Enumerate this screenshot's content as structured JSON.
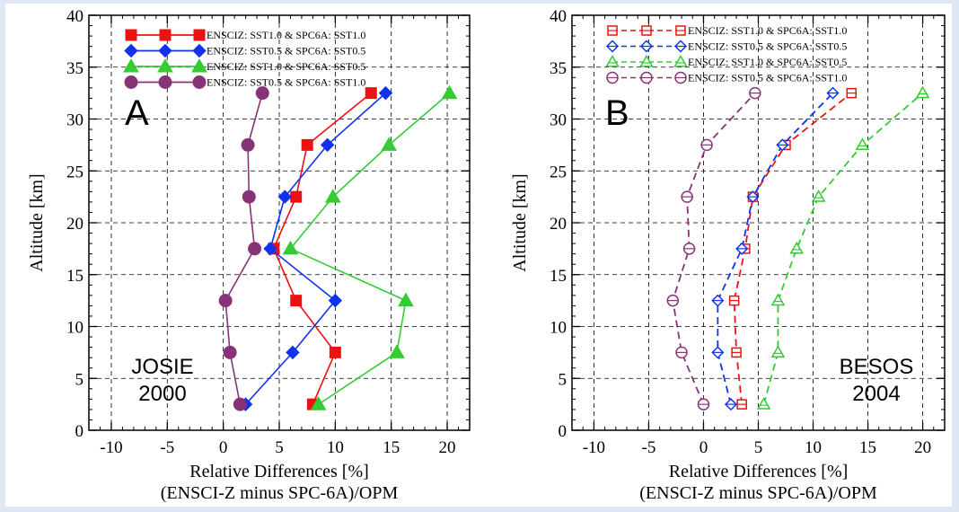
{
  "chart_data": [
    {
      "type": "line",
      "panel_letter": "A",
      "annotation": [
        "JOSIE",
        "2000"
      ],
      "xlabel": "Relative Differences  [%]",
      "xlabel2": "(ENSCI-Z minus SPC-6A)/OPM",
      "ylabel": "Altitude  [km]",
      "xlim": [
        -12,
        22
      ],
      "ylim": [
        0,
        40
      ],
      "x_ticks": [
        -10,
        -5,
        0,
        5,
        10,
        15,
        20
      ],
      "y_ticks": [
        0,
        5,
        10,
        15,
        20,
        25,
        30,
        35,
        40
      ],
      "grid": true,
      "legend_position": "top",
      "line_style": "solid",
      "series": [
        {
          "name": "ENSCIZ: SST1.0 & SPC6A: SST1.0",
          "color": "#ee1111",
          "marker": "square",
          "points": [
            [
              8.0,
              2.5
            ],
            [
              10.0,
              7.5
            ],
            [
              6.5,
              12.5
            ],
            [
              4.5,
              17.5
            ],
            [
              6.5,
              22.5
            ],
            [
              7.5,
              27.5
            ],
            [
              13.2,
              32.5
            ]
          ]
        },
        {
          "name": "ENSCIZ: SST0.5 & SPC6A: SST0.5",
          "color": "#1133ee",
          "marker": "diamond",
          "points": [
            [
              2.0,
              2.5
            ],
            [
              6.2,
              7.5
            ],
            [
              10.0,
              12.5
            ],
            [
              4.2,
              17.5
            ],
            [
              5.5,
              22.5
            ],
            [
              9.3,
              27.5
            ],
            [
              14.5,
              32.5
            ]
          ]
        },
        {
          "name": "ENSCIZ: SST1.0 & SPC6A: SST0.5",
          "color": "#33cc33",
          "marker": "triangle",
          "points": [
            [
              8.5,
              2.5
            ],
            [
              15.5,
              7.5
            ],
            [
              16.3,
              12.5
            ],
            [
              6.0,
              17.5
            ],
            [
              9.8,
              22.5
            ],
            [
              14.8,
              27.5
            ],
            [
              20.2,
              32.5
            ]
          ]
        },
        {
          "name": "ENSCIZ: SST0.5 & SPC6A: SST1.0",
          "color": "#883377",
          "marker": "circle",
          "points": [
            [
              1.5,
              2.5
            ],
            [
              0.6,
              7.5
            ],
            [
              0.2,
              12.5
            ],
            [
              2.8,
              17.5
            ],
            [
              2.3,
              22.5
            ],
            [
              2.2,
              27.5
            ],
            [
              3.5,
              32.5
            ]
          ]
        }
      ]
    },
    {
      "type": "line",
      "panel_letter": "B",
      "annotation": [
        "BESOS",
        "2004"
      ],
      "xlabel": "Relative Differences  [%]",
      "xlabel2": "(ENSCI-Z minus SPC-6A)/OPM",
      "ylabel": "Altitude  [km]",
      "xlim": [
        -12,
        22
      ],
      "ylim": [
        0,
        40
      ],
      "x_ticks": [
        -10,
        -5,
        0,
        5,
        10,
        15,
        20
      ],
      "y_ticks": [
        0,
        5,
        10,
        15,
        20,
        25,
        30,
        35,
        40
      ],
      "grid": true,
      "legend_position": "top",
      "line_style": "dashed",
      "series": [
        {
          "name": "ENSCIZ: SST1.0 & SPC6A: SST1.0",
          "color": "#ee1111",
          "marker": "square",
          "points": [
            [
              3.5,
              2.5
            ],
            [
              3.0,
              7.5
            ],
            [
              2.8,
              12.5
            ],
            [
              3.8,
              17.5
            ],
            [
              4.5,
              22.5
            ],
            [
              7.5,
              27.5
            ],
            [
              13.5,
              32.5
            ]
          ]
        },
        {
          "name": "ENSCIZ: SST0.5 & SPC6A: SST0.5",
          "color": "#1133ee",
          "marker": "diamond",
          "points": [
            [
              2.5,
              2.5
            ],
            [
              1.3,
              7.5
            ],
            [
              1.3,
              12.5
            ],
            [
              3.5,
              17.5
            ],
            [
              4.5,
              22.5
            ],
            [
              7.2,
              27.5
            ],
            [
              11.8,
              32.5
            ]
          ]
        },
        {
          "name": "ENSCIZ: SST1.0 & SPC6A: SST0.5",
          "color": "#33cc33",
          "marker": "triangle",
          "points": [
            [
              5.5,
              2.5
            ],
            [
              6.8,
              7.5
            ],
            [
              6.8,
              12.5
            ],
            [
              8.5,
              17.5
            ],
            [
              10.5,
              22.5
            ],
            [
              14.5,
              27.5
            ],
            [
              20.0,
              32.5
            ]
          ]
        },
        {
          "name": "ENSCIZ: SST0.5 & SPC6A: SST1.0",
          "color": "#883377",
          "marker": "circle",
          "points": [
            [
              0.0,
              2.5
            ],
            [
              -2.0,
              7.5
            ],
            [
              -2.8,
              12.5
            ],
            [
              -1.3,
              17.5
            ],
            [
              -1.5,
              22.5
            ],
            [
              0.3,
              27.5
            ],
            [
              4.7,
              32.5
            ]
          ]
        }
      ]
    }
  ]
}
